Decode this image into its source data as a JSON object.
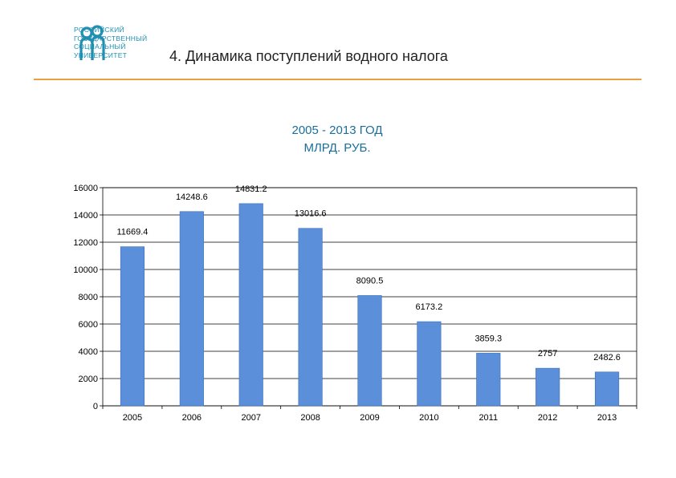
{
  "header": {
    "logo_lines": [
      "РОССИЙСКИЙ",
      "ГОСУДАРСТВЕННЫЙ",
      "СОЦИАЛЬНЫЙ",
      "УНИВЕРСИТЕТ"
    ],
    "page_title": "4. Динамика поступлений водного налога"
  },
  "colors": {
    "bar": "#5B8FD9",
    "rule": "#E8A040",
    "logo": "#1F8FB3",
    "chart_title": "#1A6F9A"
  },
  "chart_data": {
    "type": "bar",
    "title": "2005 - 2013 ГОД",
    "subtitle": "МЛРД. РУБ.",
    "categories": [
      "2005",
      "2006",
      "2007",
      "2008",
      "2009",
      "2010",
      "2011",
      "2012",
      "2013"
    ],
    "values": [
      11669.4,
      14248.6,
      14831.2,
      13016.6,
      8090.5,
      6173.2,
      3859.3,
      2757,
      2482.6
    ],
    "data_labels": [
      "11669.4",
      "14248.6",
      "14831.2",
      "13016.6",
      "8090.5",
      "6173.2",
      "3859.3",
      "2757",
      "2482.6"
    ],
    "y_ticks": [
      "0",
      "2000",
      "4000",
      "6000",
      "8000",
      "10000",
      "12000",
      "14000",
      "16000"
    ],
    "ylim": [
      0,
      16000
    ],
    "grid": true,
    "legend": "none"
  }
}
